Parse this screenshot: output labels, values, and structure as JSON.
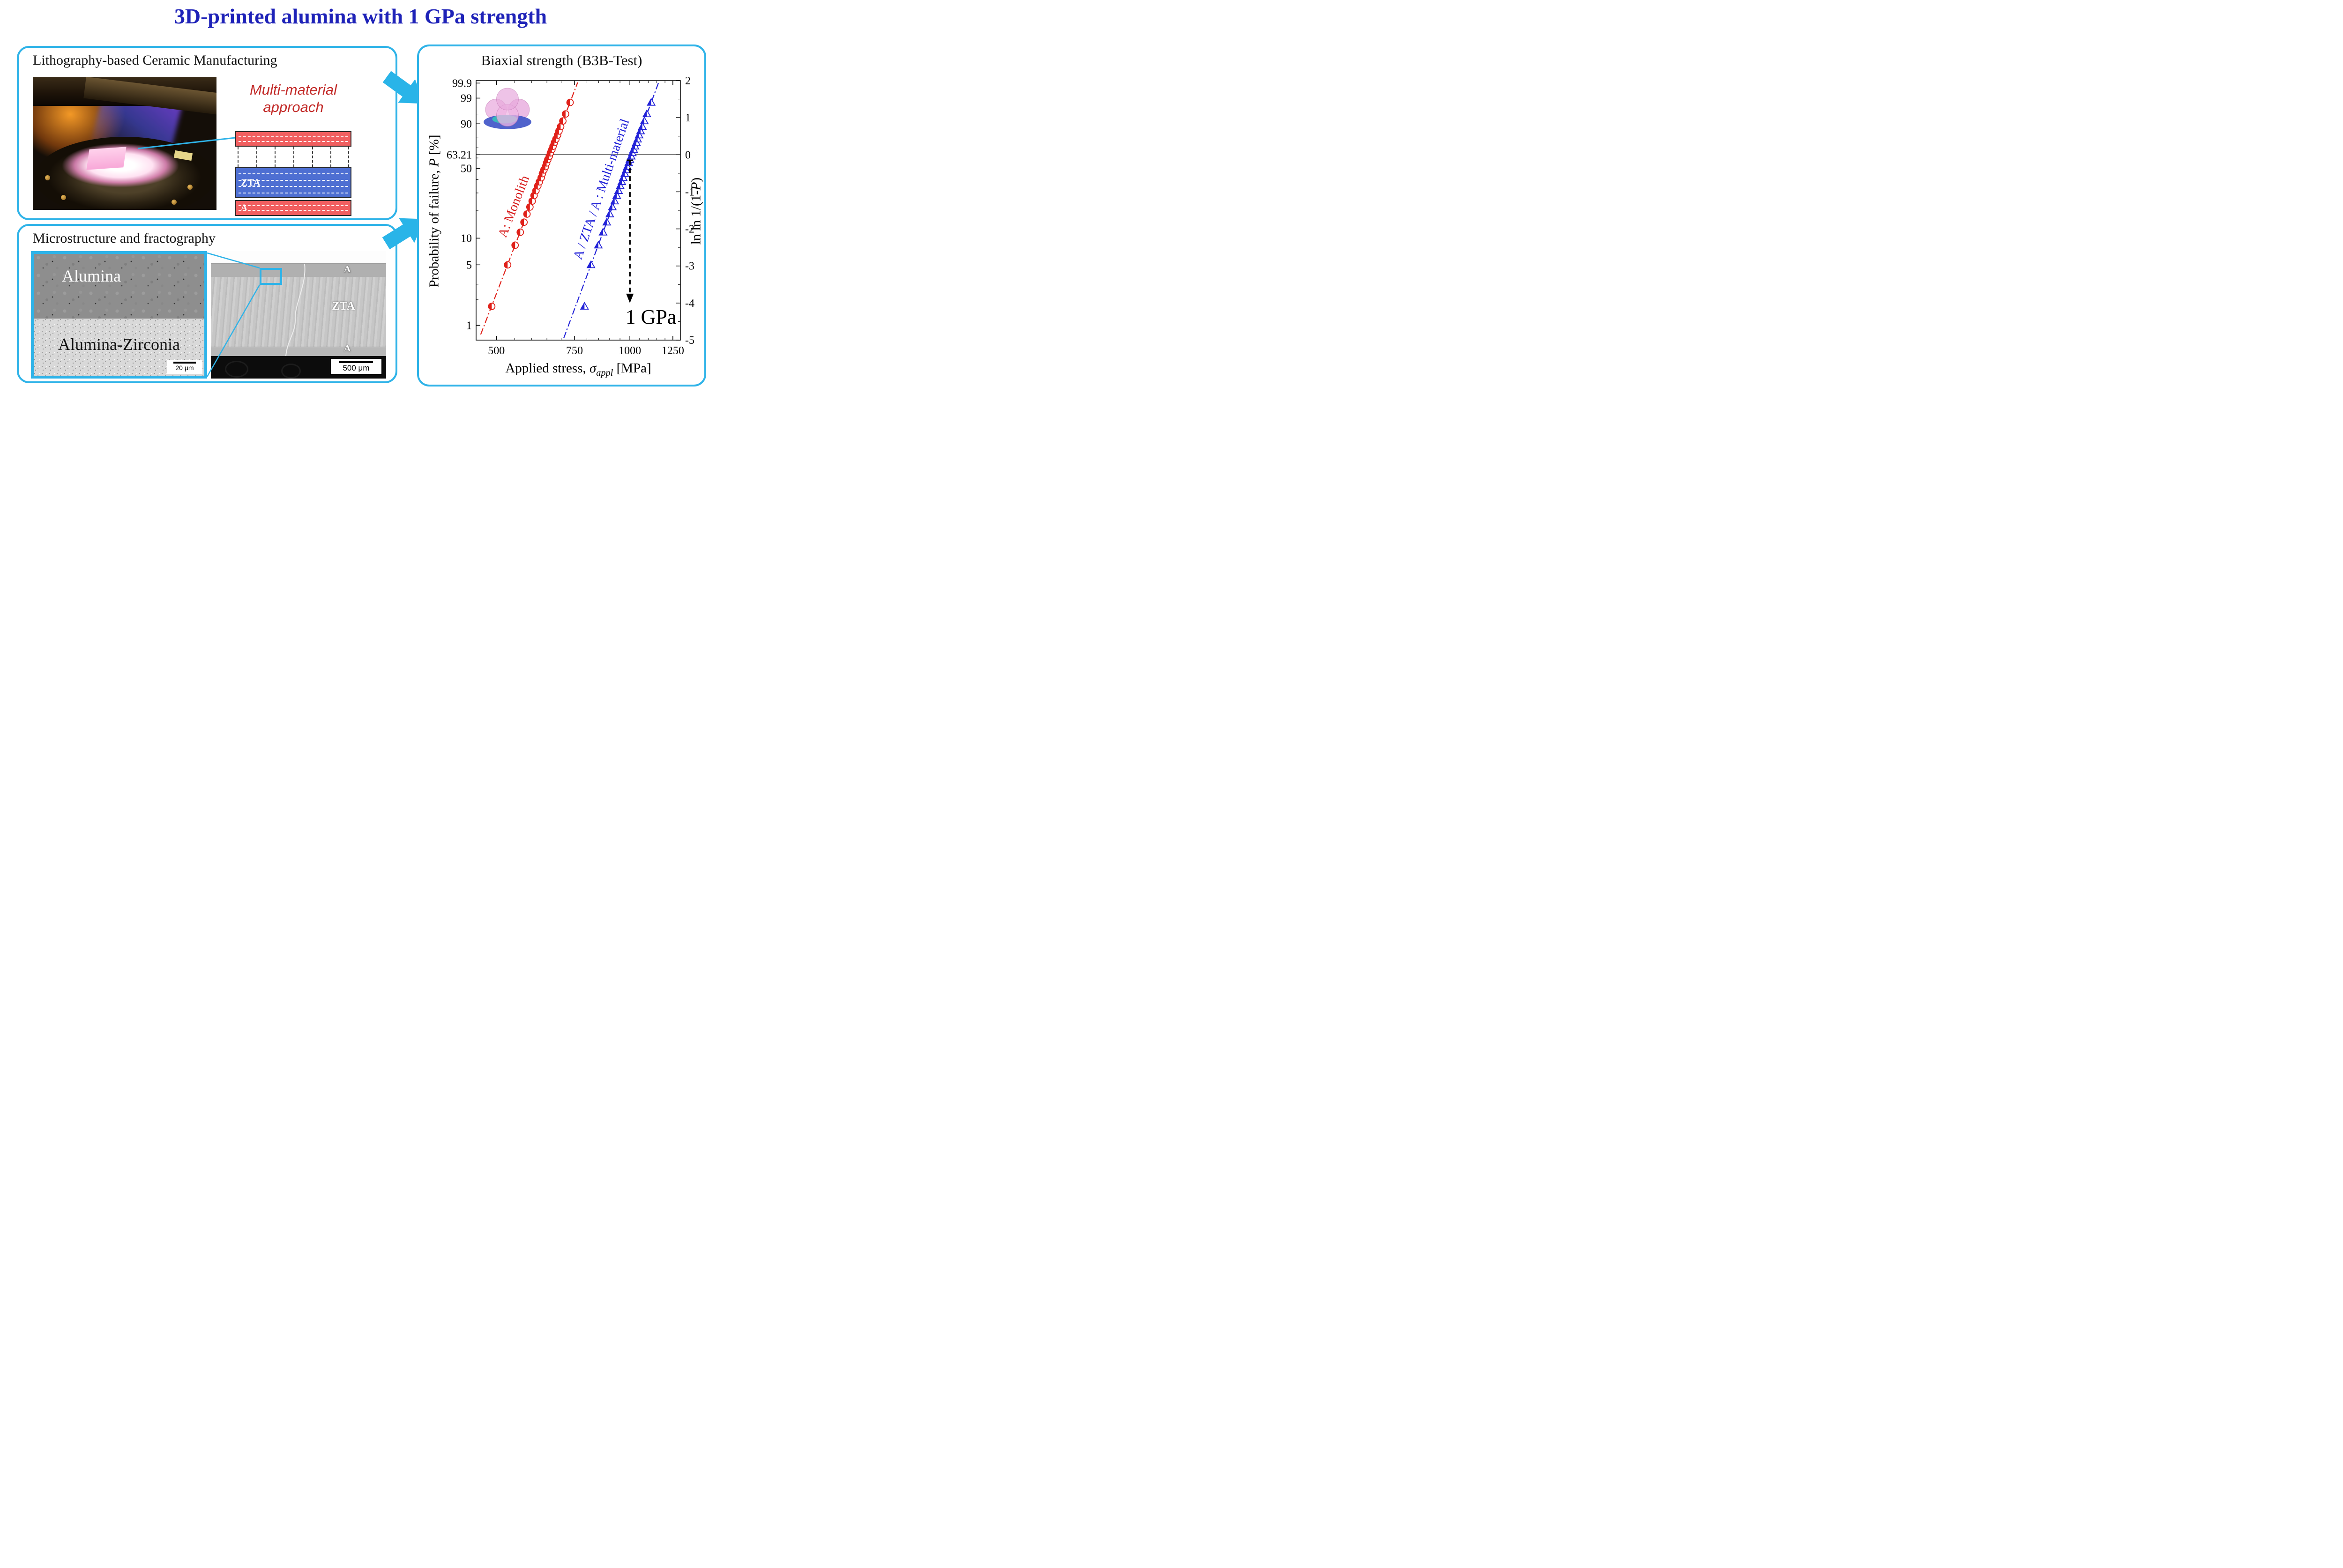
{
  "title": "3D-printed alumina with 1 GPa strength",
  "lcm_panel": {
    "title": "Lithography-based Ceramic Manufacturing",
    "approach": {
      "line1": "Multi-material",
      "line2": "approach"
    },
    "diagram": {
      "zta_label": "ZTA",
      "a_label": "A"
    }
  },
  "micro_panel": {
    "title": "Microstructure and fractography",
    "sem_detail": {
      "top_label": "Alumina",
      "bottom_label": "Alumina-Zirconia",
      "scale_bar": "20 μm"
    },
    "sem_overview": {
      "top_layer": "A",
      "middle_layer": "ZTA",
      "bottom_layer": "A",
      "scale_bar": "500 μm"
    }
  },
  "chart_data": {
    "type": "scatter",
    "title": "Biaxial strength (B3B-Test)",
    "x_axis": {
      "label_pre": "Applied stress, ",
      "label_symbol": "σ",
      "label_subscript": "appl",
      "label_post": " [MPa]",
      "scale": "log",
      "min": 450,
      "max": 1300,
      "ticks": [
        500,
        750,
        1000,
        1250
      ],
      "minor_ticks": [
        550,
        600,
        650,
        700,
        800,
        850,
        900,
        950,
        1050,
        1100,
        1150,
        1200
      ]
    },
    "y_axis_left": {
      "label_pre": "Probability of failure, ",
      "label_italic": "P",
      "label_post": " [%]",
      "unit": "percent",
      "ticks": [
        "99.9",
        "99",
        "90",
        "63.21",
        "50",
        "10",
        "5",
        "1"
      ],
      "minor_ticks": [
        2,
        3,
        20,
        30,
        40,
        60,
        70,
        80,
        95
      ]
    },
    "y_axis_right": {
      "label_pre": "ln ln 1/(1-",
      "label_italic": "P",
      "label_post": ")",
      "min": -5,
      "max": 2,
      "ticks": [
        2,
        1,
        0,
        -1,
        -2,
        -3,
        -4,
        -5
      ],
      "minor_ticks": [
        1.5,
        0.5,
        -0.5,
        -1.5,
        -2.5,
        -3.5,
        -4.5
      ]
    },
    "reference_line_lnln": 0,
    "series": [
      {
        "name": "A: Monolith",
        "marker": "half-filled-circle",
        "color": "#e0211a",
        "stress_mpa": [
          488,
          530,
          551,
          566,
          577,
          586,
          595,
          602,
          608,
          614,
          620,
          625,
          631,
          635,
          640,
          645,
          649,
          653,
          658,
          662,
          667,
          671,
          676,
          681,
          687,
          692,
          698,
          706,
          716,
          733
        ],
        "lnln": [
          -4.09,
          -2.97,
          -2.44,
          -2.09,
          -1.82,
          -1.6,
          -1.41,
          -1.25,
          -1.1,
          -0.97,
          -0.84,
          -0.73,
          -0.62,
          -0.51,
          -0.41,
          -0.32,
          -0.22,
          -0.13,
          -0.04,
          0.05,
          0.14,
          0.23,
          0.33,
          0.42,
          0.53,
          0.64,
          0.76,
          0.91,
          1.1,
          1.41
        ],
        "fit_line": {
          "weibull_modulus": 13.5,
          "char_strength_mpa": 660,
          "v_range": [
            -4.85,
            1.95
          ]
        }
      },
      {
        "name": "A / ZTA / A : Multi-material",
        "marker": "half-filled-triangle",
        "color": "#2222d8",
        "stress_mpa": [
          790,
          817,
          849,
          870,
          887,
          901,
          913,
          924,
          934,
          943,
          951,
          959,
          966,
          974,
          981,
          987,
          994,
          1000,
          1007,
          1013,
          1020,
          1027,
          1034,
          1041,
          1049,
          1057,
          1067,
          1078,
          1092,
          1117
        ],
        "lnln": [
          -4.09,
          -2.97,
          -2.44,
          -2.09,
          -1.82,
          -1.6,
          -1.41,
          -1.25,
          -1.1,
          -0.97,
          -0.84,
          -0.73,
          -0.62,
          -0.51,
          -0.41,
          -0.32,
          -0.22,
          -0.13,
          -0.04,
          0.05,
          0.14,
          0.23,
          0.33,
          0.42,
          0.53,
          0.64,
          0.76,
          0.91,
          1.1,
          1.41
        ],
        "fit_line": {
          "weibull_modulus": 14,
          "char_strength_mpa": 1010,
          "v_range": [
            -4.95,
            1.95
          ]
        }
      }
    ],
    "arrow_annotation": {
      "x_mpa": 1000,
      "from_lnln": -0.15,
      "to_lnln": -4.0,
      "label": "1 GPa"
    }
  },
  "colors": {
    "title_blue": "#1e22b8",
    "panel_border": "#2fb3e8",
    "series_red": "#e0211a",
    "series_blue": "#2222d8",
    "layer_red": "#f15f60",
    "layer_blue": "#4e6fd2"
  }
}
